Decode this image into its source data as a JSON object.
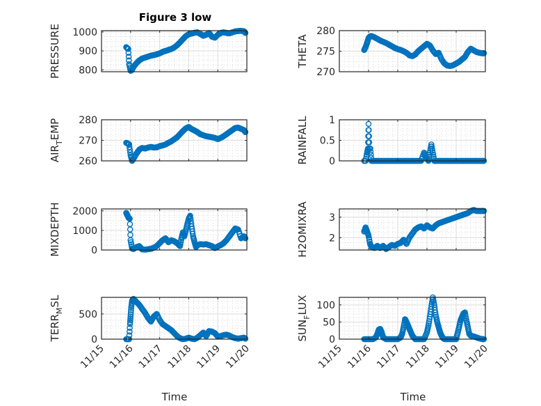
{
  "figure": {
    "title": "Figure 3 low",
    "marker_color": "#0072BD",
    "xlabel": "Time"
  },
  "chart_data": [
    {
      "type": "scatter",
      "ylabel": "PRESSURE",
      "ylim": [
        790,
        1007
      ],
      "yticks": [
        800,
        900,
        1000
      ],
      "ytick_labels": [
        "800",
        "900",
        "1000"
      ],
      "xticks": [
        "11/15",
        "11/16",
        "11/17",
        "11/18",
        "11/19",
        "11/20"
      ],
      "x_range_days": [
        15,
        20
      ],
      "grid": true,
      "title": "Figure 3 low",
      "x": [
        15.85,
        15.88,
        15.92,
        15.95,
        16.0,
        16.05,
        16.1,
        16.2,
        16.3,
        16.4,
        16.5,
        16.6,
        16.7,
        16.8,
        16.9,
        17.0,
        17.1,
        17.2,
        17.3,
        17.4,
        17.5,
        17.6,
        17.7,
        17.8,
        17.9,
        18.0,
        18.1,
        18.2,
        18.3,
        18.4,
        18.5,
        18.6,
        18.7,
        18.8,
        18.9,
        19.0,
        19.1,
        19.2,
        19.3,
        19.4,
        19.5,
        19.6,
        19.7,
        19.8,
        19.9,
        19.95
      ],
      "y": [
        920,
        915,
        910,
        830,
        795,
        800,
        815,
        835,
        850,
        860,
        865,
        870,
        875,
        878,
        882,
        887,
        895,
        900,
        905,
        910,
        918,
        930,
        945,
        962,
        978,
        988,
        992,
        996,
        998,
        990,
        980,
        985,
        995,
        975,
        970,
        985,
        995,
        998,
        995,
        993,
        998,
        1003,
        1005,
        1006,
        1004,
        995
      ]
    },
    {
      "type": "scatter",
      "ylabel": "THETA",
      "ylim": [
        270,
        280
      ],
      "yticks": [
        270,
        275,
        280
      ],
      "ytick_labels": [
        "270",
        "275",
        "280"
      ],
      "xticks": [
        "11/15",
        "11/16",
        "11/17",
        "11/18",
        "11/19",
        "11/20"
      ],
      "x_range_days": [
        15,
        20
      ],
      "grid": true,
      "x": [
        15.85,
        15.9,
        15.95,
        16.0,
        16.05,
        16.1,
        16.2,
        16.3,
        16.4,
        16.5,
        16.6,
        16.7,
        16.8,
        16.9,
        17.0,
        17.1,
        17.2,
        17.3,
        17.4,
        17.5,
        17.6,
        17.7,
        17.8,
        17.9,
        18.0,
        18.1,
        18.2,
        18.3,
        18.4,
        18.5,
        18.6,
        18.7,
        18.8,
        18.9,
        19.0,
        19.1,
        19.2,
        19.3,
        19.4,
        19.5,
        19.6,
        19.7,
        19.8,
        19.9,
        19.95
      ],
      "y": [
        275.3,
        276.0,
        277.0,
        278.2,
        278.6,
        278.7,
        278.4,
        278.0,
        277.6,
        277.3,
        277.0,
        276.6,
        276.2,
        275.8,
        275.5,
        275.3,
        275.0,
        274.6,
        274.0,
        273.8,
        274.2,
        275.0,
        275.6,
        276.2,
        276.8,
        276.4,
        275.2,
        274.3,
        274.6,
        273.0,
        272.0,
        271.5,
        271.4,
        271.6,
        272.0,
        272.4,
        273.0,
        273.6,
        274.8,
        275.6,
        275.2,
        274.8,
        274.6,
        274.5,
        274.5
      ]
    },
    {
      "type": "scatter",
      "ylabel": "AIR_TEMP",
      "ylabel_display": {
        "base": "AIR",
        "sub": "T",
        "rest": "EMP"
      },
      "ylim": [
        260,
        280
      ],
      "yticks": [
        260,
        270,
        280
      ],
      "ytick_labels": [
        "260",
        "270",
        "280"
      ],
      "xticks": [
        "11/15",
        "11/16",
        "11/17",
        "11/18",
        "11/19",
        "11/20"
      ],
      "x_range_days": [
        15,
        20
      ],
      "grid": true,
      "x": [
        15.85,
        15.9,
        15.95,
        16.0,
        16.05,
        16.1,
        16.2,
        16.3,
        16.4,
        16.5,
        16.6,
        16.7,
        16.8,
        16.9,
        17.0,
        17.1,
        17.2,
        17.3,
        17.4,
        17.5,
        17.6,
        17.7,
        17.8,
        17.9,
        18.0,
        18.1,
        18.2,
        18.3,
        18.4,
        18.5,
        18.6,
        18.7,
        18.8,
        18.9,
        19.0,
        19.1,
        19.2,
        19.3,
        19.4,
        19.5,
        19.6,
        19.7,
        19.8,
        19.9,
        19.95
      ],
      "y": [
        268.8,
        268.5,
        268.0,
        262.8,
        260.0,
        261.0,
        263.5,
        265.5,
        266.3,
        266.0,
        266.5,
        266.8,
        266.5,
        266.6,
        267.2,
        267.5,
        268.0,
        268.8,
        269.5,
        270.5,
        271.5,
        273.0,
        274.5,
        275.8,
        276.5,
        275.5,
        274.8,
        274.0,
        273.0,
        272.5,
        272.0,
        271.8,
        271.5,
        271.2,
        270.6,
        271.2,
        272.0,
        273.0,
        274.0,
        275.0,
        276.0,
        276.2,
        275.6,
        275.0,
        274.0
      ]
    },
    {
      "type": "scatter",
      "ylabel": "RAINFALL",
      "ylim": [
        0,
        1
      ],
      "yticks": [
        0,
        0.5,
        1
      ],
      "ytick_labels": [
        "0",
        "0.5",
        "1"
      ],
      "xticks": [
        "11/15",
        "11/16",
        "11/17",
        "11/18",
        "11/19",
        "11/20"
      ],
      "x_range_days": [
        15,
        20
      ],
      "grid": true,
      "x": [
        15.85,
        15.9,
        15.95,
        15.98,
        16.0,
        16.03,
        16.06,
        16.1,
        16.2,
        16.3,
        16.4,
        16.5,
        16.6,
        16.7,
        16.8,
        16.9,
        17.0,
        17.1,
        17.2,
        17.3,
        17.4,
        17.5,
        17.6,
        17.7,
        17.8,
        17.9,
        17.95,
        18.0,
        18.05,
        18.1,
        18.15,
        18.2,
        18.25,
        18.3,
        18.4,
        18.5,
        18.6,
        18.7,
        18.8,
        18.9,
        19.0,
        19.1,
        19.2,
        19.3,
        19.4,
        19.5,
        19.6,
        19.7,
        19.8,
        19.9,
        19.95
      ],
      "y": [
        0,
        0,
        0.2,
        0.3,
        0.9,
        0.3,
        0.3,
        0,
        0,
        0,
        0,
        0,
        0,
        0,
        0,
        0,
        0,
        0,
        0,
        0,
        0,
        0,
        0,
        0,
        0,
        0.2,
        0.1,
        0.05,
        0,
        0.2,
        0.4,
        0.2,
        0,
        0,
        0,
        0,
        0,
        0,
        0,
        0,
        0,
        0,
        0,
        0,
        0,
        0,
        0,
        0,
        0,
        0,
        0
      ]
    },
    {
      "type": "scatter",
      "ylabel": "MIXDEPTH",
      "ylim": [
        0,
        2100
      ],
      "yticks": [
        0,
        1000,
        2000
      ],
      "ytick_labels": [
        "0",
        "1000",
        "2000"
      ],
      "xticks": [
        "11/15",
        "11/16",
        "11/17",
        "11/18",
        "11/19",
        "11/20"
      ],
      "x_range_days": [
        15,
        20
      ],
      "grid": true,
      "x": [
        15.85,
        15.88,
        15.93,
        15.97,
        16.0,
        16.05,
        16.1,
        16.2,
        16.3,
        16.4,
        16.5,
        16.6,
        16.7,
        16.8,
        16.9,
        17.0,
        17.1,
        17.2,
        17.3,
        17.4,
        17.5,
        17.6,
        17.7,
        17.75,
        17.8,
        17.85,
        17.9,
        17.95,
        18.0,
        18.05,
        18.1,
        18.15,
        18.2,
        18.25,
        18.3,
        18.4,
        18.5,
        18.6,
        18.7,
        18.8,
        18.9,
        19.0,
        19.1,
        19.2,
        19.3,
        19.4,
        19.5,
        19.6,
        19.7,
        19.8,
        19.9,
        19.95
      ],
      "y": [
        1900,
        1800,
        1650,
        1600,
        500,
        80,
        50,
        150,
        200,
        30,
        20,
        40,
        60,
        120,
        200,
        350,
        500,
        600,
        400,
        500,
        450,
        350,
        200,
        600,
        900,
        700,
        1000,
        1300,
        1600,
        1750,
        1200,
        700,
        400,
        150,
        250,
        300,
        280,
        300,
        250,
        200,
        100,
        180,
        250,
        350,
        500,
        700,
        900,
        1100,
        1050,
        600,
        700,
        600
      ]
    },
    {
      "type": "scatter",
      "ylabel": "H2OMIXRA",
      "ylim": [
        1.4,
        3.4
      ],
      "yticks": [
        2,
        3
      ],
      "ytick_labels": [
        "2",
        "3"
      ],
      "xticks": [
        "11/15",
        "11/16",
        "11/17",
        "11/18",
        "11/19",
        "11/20"
      ],
      "x_range_days": [
        15,
        20
      ],
      "grid": true,
      "x": [
        15.85,
        15.9,
        15.95,
        16.0,
        16.05,
        16.1,
        16.2,
        16.3,
        16.4,
        16.5,
        16.6,
        16.7,
        16.8,
        16.9,
        17.0,
        17.1,
        17.2,
        17.3,
        17.4,
        17.5,
        17.6,
        17.7,
        17.8,
        17.9,
        18.0,
        18.1,
        18.2,
        18.3,
        18.4,
        18.5,
        18.6,
        18.7,
        18.8,
        18.9,
        19.0,
        19.1,
        19.2,
        19.3,
        19.4,
        19.5,
        19.6,
        19.7,
        19.8,
        19.9,
        19.95
      ],
      "y": [
        2.3,
        2.5,
        2.3,
        2.1,
        1.7,
        1.55,
        1.5,
        1.6,
        1.5,
        1.6,
        1.45,
        1.55,
        1.65,
        1.6,
        1.7,
        1.75,
        1.9,
        1.7,
        2.0,
        2.2,
        2.4,
        2.5,
        2.55,
        2.45,
        2.6,
        2.5,
        2.45,
        2.6,
        2.7,
        2.75,
        2.8,
        2.85,
        2.9,
        2.95,
        3.0,
        3.05,
        3.1,
        3.15,
        3.2,
        3.3,
        3.35,
        3.3,
        3.3,
        3.3,
        3.3
      ]
    },
    {
      "type": "scatter",
      "ylabel": "TERR_MSL",
      "ylabel_display": {
        "base": "TERR",
        "sub": "M",
        "rest": "SL"
      },
      "ylim": [
        0,
        830
      ],
      "yticks": [
        0,
        500
      ],
      "ytick_labels": [
        "0",
        "500"
      ],
      "xticks": [
        "11/15",
        "11/16",
        "11/17",
        "11/18",
        "11/19",
        "11/20"
      ],
      "x_range_days": [
        15,
        20
      ],
      "grid": true,
      "x": [
        15.85,
        15.9,
        15.95,
        15.98,
        16.0,
        16.02,
        16.05,
        16.1,
        16.2,
        16.3,
        16.4,
        16.5,
        16.6,
        16.7,
        16.8,
        16.9,
        17.0,
        17.1,
        17.2,
        17.3,
        17.4,
        17.5,
        17.6,
        17.7,
        17.8,
        17.9,
        18.0,
        18.1,
        18.2,
        18.3,
        18.4,
        18.5,
        18.6,
        18.7,
        18.8,
        18.9,
        19.0,
        19.1,
        19.2,
        19.3,
        19.4,
        19.5,
        19.6,
        19.7,
        19.8,
        19.9,
        19.95
      ],
      "y": [
        0,
        0,
        0,
        300,
        450,
        620,
        760,
        800,
        740,
        680,
        600,
        520,
        420,
        350,
        450,
        500,
        380,
        300,
        260,
        220,
        180,
        120,
        60,
        20,
        0,
        10,
        30,
        10,
        0,
        30,
        80,
        130,
        60,
        160,
        150,
        120,
        50,
        60,
        80,
        90,
        70,
        40,
        20,
        10,
        20,
        30,
        10
      ]
    },
    {
      "type": "scatter",
      "ylabel": "SUN_FLUX",
      "ylabel_display": {
        "base": "SUN",
        "sub": "F",
        "rest": "LUX"
      },
      "ylim": [
        0,
        122
      ],
      "yticks": [
        0,
        50,
        100
      ],
      "ytick_labels": [
        "0",
        "50",
        "100"
      ],
      "xticks": [
        "11/15",
        "11/16",
        "11/17",
        "11/18",
        "11/19",
        "11/20"
      ],
      "x_range_days": [
        15,
        20
      ],
      "grid": true,
      "x": [
        15.85,
        15.95,
        16.05,
        16.15,
        16.25,
        16.3,
        16.35,
        16.4,
        16.45,
        16.5,
        16.6,
        16.7,
        16.8,
        16.9,
        17.0,
        17.1,
        17.15,
        17.2,
        17.25,
        17.3,
        17.35,
        17.4,
        17.45,
        17.5,
        17.55,
        17.6,
        17.7,
        17.8,
        17.9,
        18.0,
        18.05,
        18.1,
        18.15,
        18.2,
        18.25,
        18.3,
        18.35,
        18.4,
        18.45,
        18.5,
        18.55,
        18.6,
        18.7,
        18.8,
        18.9,
        19.0,
        19.05,
        19.1,
        19.15,
        19.2,
        19.25,
        19.3,
        19.35,
        19.4,
        19.45,
        19.5,
        19.6,
        19.7,
        19.8,
        19.9,
        19.95
      ],
      "y": [
        0,
        0,
        0,
        0,
        5,
        15,
        28,
        30,
        20,
        5,
        0,
        0,
        0,
        0,
        0,
        5,
        15,
        35,
        58,
        50,
        40,
        30,
        20,
        10,
        5,
        0,
        0,
        0,
        0,
        20,
        40,
        65,
        95,
        122,
        100,
        70,
        50,
        35,
        20,
        10,
        3,
        0,
        0,
        0,
        0,
        0,
        18,
        35,
        55,
        65,
        75,
        78,
        55,
        35,
        15,
        10,
        8,
        5,
        2,
        0,
        0
      ]
    }
  ]
}
